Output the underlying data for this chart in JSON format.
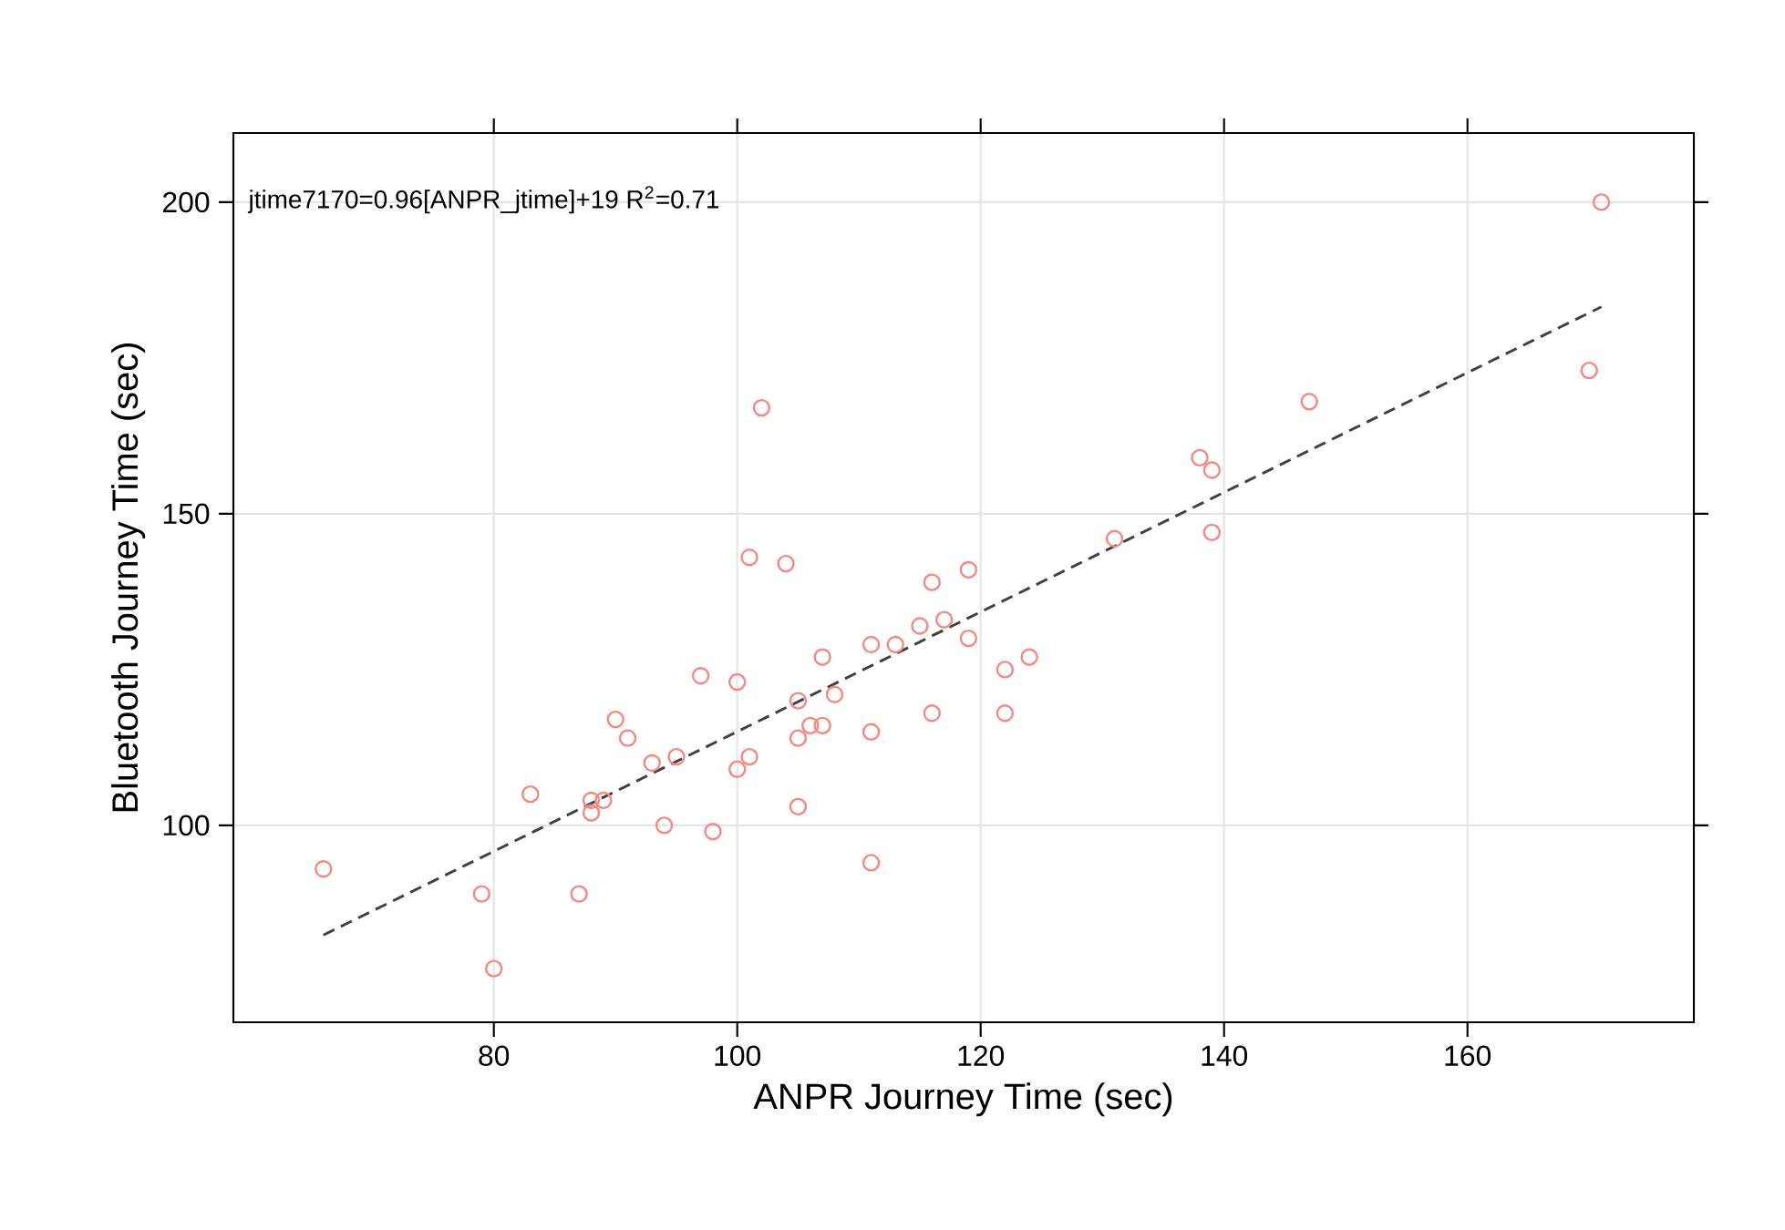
{
  "chart_data": {
    "type": "scatter",
    "xlabel": "ANPR Journey Time (sec)",
    "ylabel": "Bluetooth Journey Time (sec)",
    "annotations": [
      "jtime7170=0.96[ANPR_jtime]+19 R$^{2}$=0.71"
    ],
    "xlim": [
      58.6,
      178.6
    ],
    "ylim": [
      68.4,
      211.1
    ],
    "xticks": [
      80,
      100,
      120,
      140,
      160
    ],
    "yticks": [
      100,
      150,
      200
    ],
    "grid": true,
    "series": [
      {
        "color": "#f8877f",
        "marker": "circle",
        "x": [
          66,
          79,
          80,
          83,
          88,
          89,
          88,
          87,
          90,
          91,
          93,
          95,
          94,
          97,
          98,
          100,
          100,
          101,
          101,
          102,
          104,
          105,
          105,
          105,
          106,
          107,
          107,
          108,
          111,
          111,
          111,
          113,
          115,
          116,
          117,
          116,
          119,
          119,
          122,
          122,
          124,
          131,
          138,
          139,
          139,
          147,
          170,
          171
        ],
        "values": [
          93,
          89,
          77,
          105,
          104,
          104,
          102,
          89,
          117,
          114,
          110,
          111,
          100,
          124,
          99,
          123,
          109,
          111,
          143,
          167,
          142,
          120,
          114,
          103,
          116,
          116,
          127,
          121,
          129,
          115,
          94,
          129,
          132,
          139,
          133,
          118,
          141,
          130,
          125,
          118,
          127,
          146,
          159,
          157,
          147,
          168,
          173,
          200
        ]
      },
      {
        "type": "line",
        "color": "#404040",
        "line_style": "dashed",
        "marker": "none",
        "x": [
          66,
          171
        ],
        "values": [
          82.4,
          183.2
        ]
      }
    ]
  }
}
